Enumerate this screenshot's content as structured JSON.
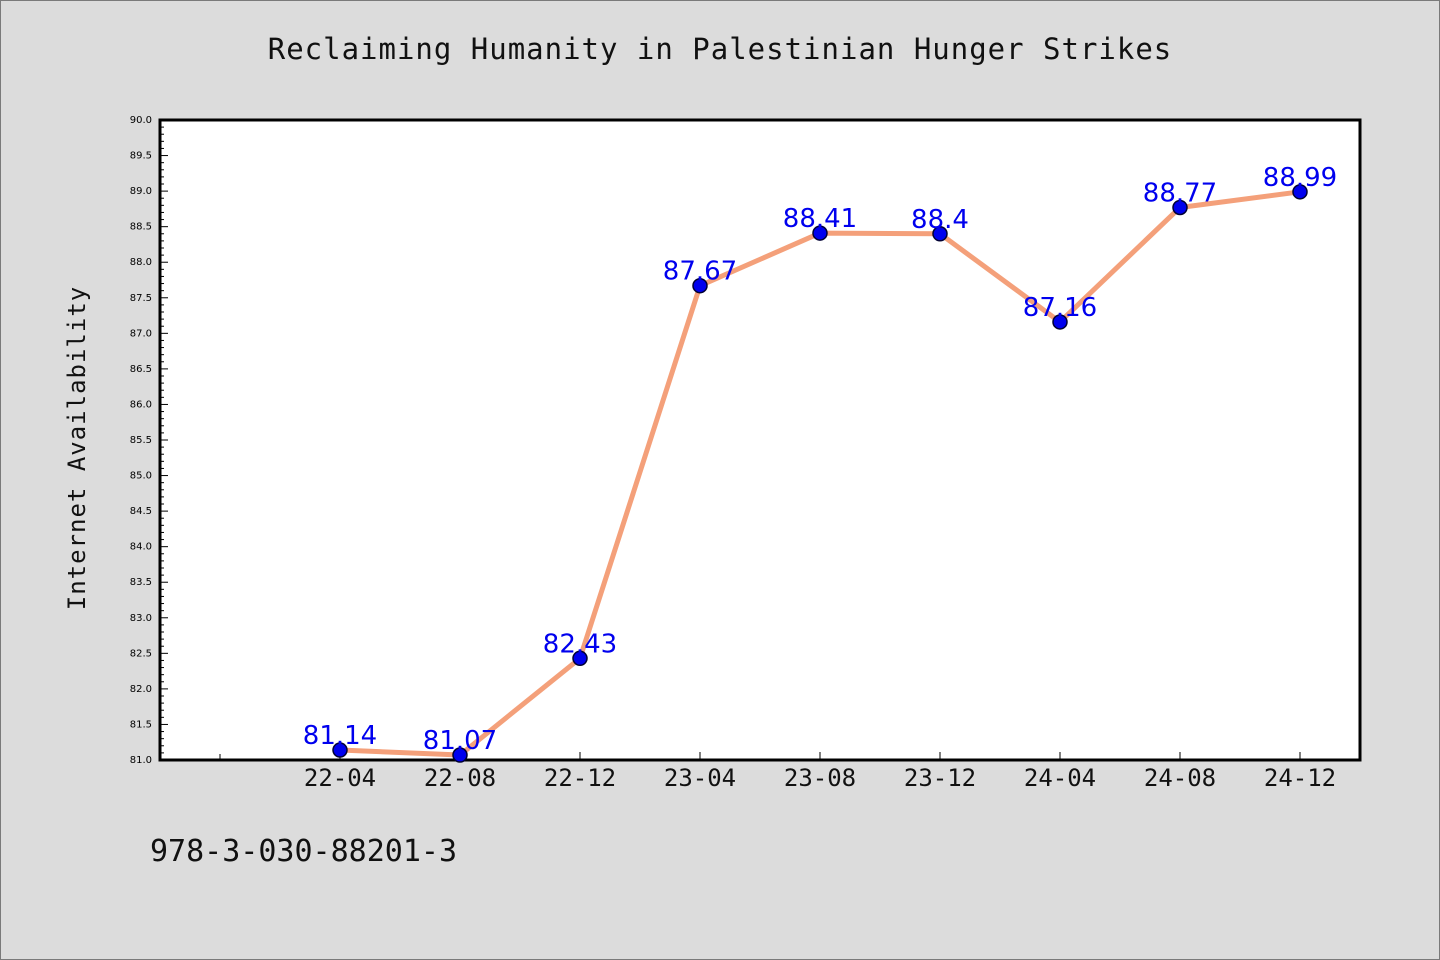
{
  "chart_data": {
    "type": "line",
    "title": "Reclaiming Humanity in Palestinian Hunger Strikes",
    "xlabel": "",
    "ylabel": "Internet Availability",
    "categories": [
      "22-04",
      "22-08",
      "22-12",
      "23-04",
      "23-08",
      "23-12",
      "24-04",
      "24-08",
      "24-12"
    ],
    "values": [
      81.14,
      81.07,
      82.43,
      87.67,
      88.41,
      88.4,
      87.16,
      88.77,
      88.99
    ],
    "data_labels": [
      "81.14",
      "81.07",
      "82.43",
      "87.67",
      "88.41",
      "88.4",
      "87.16",
      "88.77",
      "88.99"
    ],
    "ylim": [
      81.0,
      90.0
    ],
    "yticks": [
      "81.0",
      "81.5",
      "82.0",
      "82.5",
      "83.0",
      "83.5",
      "84.0",
      "84.5",
      "85.0",
      "85.5",
      "86.0",
      "86.5",
      "87.0",
      "87.5",
      "88.0",
      "88.5",
      "89.0",
      "89.5",
      "90.0"
    ],
    "grid": false,
    "colors": {
      "line": "#f4a07a",
      "marker": "#0000ee",
      "label": "#0000ee"
    }
  },
  "footer": {
    "id_text": "978-3-030-88201-3"
  }
}
